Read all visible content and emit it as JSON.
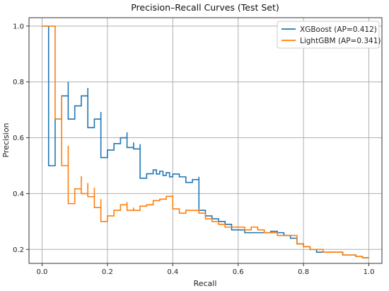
{
  "chart_data": {
    "type": "line",
    "title": "Precision–Recall Curves (Test Set)",
    "xlabel": "Recall",
    "ylabel": "Precision",
    "xlim": [
      -0.04,
      1.04
    ],
    "ylim": [
      0.15,
      1.03
    ],
    "x_ticks": [
      "0.0",
      "0.2",
      "0.4",
      "0.6",
      "0.8",
      "1.0"
    ],
    "y_ticks": [
      "0.2",
      "0.4",
      "0.6",
      "0.8",
      "1.0"
    ],
    "grid": true,
    "legend_position": "top-right",
    "series": [
      {
        "name": "XGBoost (AP=0.412)",
        "color": "#1f77b4",
        "step": true,
        "points": [
          [
            0.0,
            1.0
          ],
          [
            0.02,
            1.0
          ],
          [
            0.02,
            0.5
          ],
          [
            0.04,
            0.667
          ],
          [
            0.06,
            0.75
          ],
          [
            0.08,
            0.8
          ],
          [
            0.08,
            0.667
          ],
          [
            0.1,
            0.714
          ],
          [
            0.12,
            0.75
          ],
          [
            0.14,
            0.778
          ],
          [
            0.14,
            0.636
          ],
          [
            0.16,
            0.667
          ],
          [
            0.18,
            0.692
          ],
          [
            0.18,
            0.529
          ],
          [
            0.2,
            0.556
          ],
          [
            0.22,
            0.579
          ],
          [
            0.24,
            0.6
          ],
          [
            0.26,
            0.619
          ],
          [
            0.26,
            0.565
          ],
          [
            0.28,
            0.583
          ],
          [
            0.28,
            0.56
          ],
          [
            0.3,
            0.577
          ],
          [
            0.3,
            0.455
          ],
          [
            0.32,
            0.471
          ],
          [
            0.34,
            0.485
          ],
          [
            0.35,
            0.47
          ],
          [
            0.36,
            0.48
          ],
          [
            0.37,
            0.465
          ],
          [
            0.38,
            0.475
          ],
          [
            0.39,
            0.46
          ],
          [
            0.4,
            0.47
          ],
          [
            0.42,
            0.46
          ],
          [
            0.44,
            0.44
          ],
          [
            0.46,
            0.45
          ],
          [
            0.48,
            0.46
          ],
          [
            0.48,
            0.34
          ],
          [
            0.5,
            0.32
          ],
          [
            0.52,
            0.31
          ],
          [
            0.54,
            0.3
          ],
          [
            0.56,
            0.29
          ],
          [
            0.58,
            0.27
          ],
          [
            0.6,
            0.27
          ],
          [
            0.62,
            0.26
          ],
          [
            0.64,
            0.26
          ],
          [
            0.66,
            0.26
          ],
          [
            0.68,
            0.26
          ],
          [
            0.7,
            0.265
          ],
          [
            0.72,
            0.26
          ],
          [
            0.74,
            0.25
          ],
          [
            0.76,
            0.24
          ],
          [
            0.78,
            0.22
          ],
          [
            0.8,
            0.21
          ],
          [
            0.82,
            0.2
          ],
          [
            0.84,
            0.19
          ],
          [
            0.86,
            0.19
          ],
          [
            0.88,
            0.19
          ],
          [
            0.9,
            0.19
          ],
          [
            0.92,
            0.18
          ],
          [
            0.94,
            0.18
          ],
          [
            0.96,
            0.175
          ],
          [
            0.98,
            0.17
          ],
          [
            1.0,
            0.17
          ]
        ]
      },
      {
        "name": "LightGBM (AP=0.341)",
        "color": "#ff7f0e",
        "step": true,
        "points": [
          [
            0.0,
            1.0
          ],
          [
            0.04,
            1.0
          ],
          [
            0.04,
            0.667
          ],
          [
            0.06,
            0.75
          ],
          [
            0.06,
            0.5
          ],
          [
            0.08,
            0.571
          ],
          [
            0.08,
            0.364
          ],
          [
            0.1,
            0.417
          ],
          [
            0.12,
            0.462
          ],
          [
            0.12,
            0.4
          ],
          [
            0.14,
            0.438
          ],
          [
            0.14,
            0.389
          ],
          [
            0.16,
            0.421
          ],
          [
            0.16,
            0.35
          ],
          [
            0.18,
            0.38
          ],
          [
            0.18,
            0.3
          ],
          [
            0.2,
            0.32
          ],
          [
            0.22,
            0.34
          ],
          [
            0.24,
            0.36
          ],
          [
            0.26,
            0.37
          ],
          [
            0.26,
            0.34
          ],
          [
            0.28,
            0.35
          ],
          [
            0.28,
            0.34
          ],
          [
            0.3,
            0.355
          ],
          [
            0.32,
            0.36
          ],
          [
            0.34,
            0.375
          ],
          [
            0.36,
            0.38
          ],
          [
            0.38,
            0.39
          ],
          [
            0.4,
            0.395
          ],
          [
            0.4,
            0.345
          ],
          [
            0.42,
            0.33
          ],
          [
            0.44,
            0.34
          ],
          [
            0.46,
            0.34
          ],
          [
            0.48,
            0.345
          ],
          [
            0.48,
            0.33
          ],
          [
            0.5,
            0.31
          ],
          [
            0.52,
            0.3
          ],
          [
            0.54,
            0.29
          ],
          [
            0.56,
            0.28
          ],
          [
            0.58,
            0.28
          ],
          [
            0.6,
            0.28
          ],
          [
            0.62,
            0.27
          ],
          [
            0.64,
            0.28
          ],
          [
            0.66,
            0.27
          ],
          [
            0.68,
            0.26
          ],
          [
            0.7,
            0.26
          ],
          [
            0.72,
            0.25
          ],
          [
            0.74,
            0.25
          ],
          [
            0.76,
            0.25
          ],
          [
            0.78,
            0.22
          ],
          [
            0.8,
            0.21
          ],
          [
            0.82,
            0.2
          ],
          [
            0.84,
            0.2
          ],
          [
            0.86,
            0.19
          ],
          [
            0.88,
            0.19
          ],
          [
            0.9,
            0.19
          ],
          [
            0.92,
            0.18
          ],
          [
            0.94,
            0.18
          ],
          [
            0.96,
            0.175
          ],
          [
            0.98,
            0.17
          ],
          [
            1.0,
            0.17
          ]
        ]
      }
    ],
    "overlap_color": "#d4aa10"
  }
}
